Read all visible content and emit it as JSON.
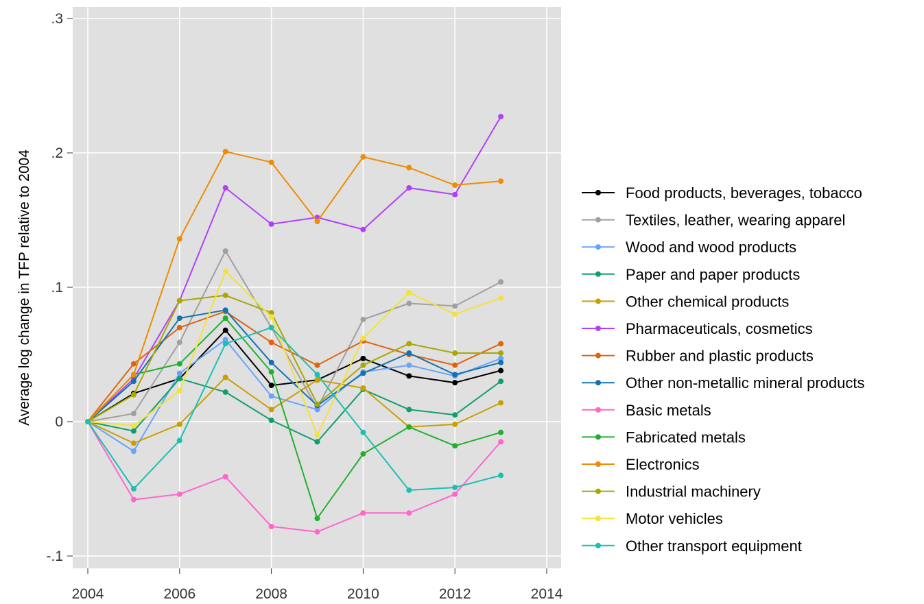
{
  "chart_data": {
    "type": "line",
    "title": "",
    "xlabel": "",
    "ylabel": "Average log change in TFP relative to 2004",
    "xlim": [
      2004,
      2014
    ],
    "ylim": [
      -0.1,
      0.3
    ],
    "x_ticks": [
      2004,
      2006,
      2008,
      2010,
      2012,
      2014
    ],
    "y_ticks": [
      -0.1,
      0,
      0.1,
      0.2,
      0.3
    ],
    "y_tick_labels": [
      "-.1",
      "0",
      ".1",
      ".2",
      ".3"
    ],
    "grid": true,
    "legend_position": "right",
    "panel_background": "#e0e0e0",
    "x": [
      2004,
      2005,
      2006,
      2007,
      2008,
      2009,
      2010,
      2011,
      2012,
      2013
    ],
    "series": [
      {
        "name": "Food products, beverages, tobacco",
        "color": "#000000",
        "values": [
          0,
          0.021,
          0.032,
          0.068,
          0.027,
          0.031,
          0.047,
          0.034,
          0.029,
          0.038
        ]
      },
      {
        "name": "Textiles, leather, wearing apparel",
        "color": "#a0a0a0",
        "values": [
          0,
          0.006,
          0.059,
          0.127,
          0.07,
          0.01,
          0.076,
          0.088,
          0.086,
          0.104
        ]
      },
      {
        "name": "Wood and wood products",
        "color": "#66a3ff",
        "values": [
          0,
          -0.022,
          0.036,
          0.061,
          0.019,
          0.009,
          0.037,
          0.042,
          0.034,
          0.047
        ]
      },
      {
        "name": "Paper and paper products",
        "color": "#119e6a",
        "values": [
          0,
          -0.007,
          0.032,
          0.022,
          0.001,
          -0.015,
          0.024,
          0.009,
          0.005,
          0.03
        ]
      },
      {
        "name": "Other chemical products",
        "color": "#c8a000",
        "values": [
          0,
          -0.016,
          -0.002,
          0.033,
          0.009,
          0.031,
          0.025,
          -0.004,
          -0.002,
          0.014
        ]
      },
      {
        "name": "Pharmaceuticals, cosmetics",
        "color": "#b040ff",
        "values": [
          0,
          0.032,
          0.09,
          0.174,
          0.147,
          0.152,
          0.143,
          0.174,
          0.169,
          0.227
        ]
      },
      {
        "name": "Rubber and plastic products",
        "color": "#e06410",
        "values": [
          0,
          0.043,
          0.07,
          0.082,
          0.059,
          0.042,
          0.06,
          0.05,
          0.042,
          0.058
        ]
      },
      {
        "name": "Other non-metallic mineral products",
        "color": "#1272b0",
        "values": [
          0,
          0.03,
          0.077,
          0.083,
          0.044,
          0.012,
          0.036,
          0.051,
          0.035,
          0.044
        ]
      },
      {
        "name": "Basic metals",
        "color": "#ff66cc",
        "values": [
          0,
          -0.058,
          -0.054,
          -0.041,
          -0.078,
          -0.082,
          -0.068,
          -0.068,
          -0.054,
          -0.015
        ]
      },
      {
        "name": "Fabricated metals",
        "color": "#20b030",
        "values": [
          0,
          0.035,
          0.043,
          0.077,
          0.037,
          -0.072,
          -0.024,
          -0.004,
          -0.018,
          -0.008
        ]
      },
      {
        "name": "Electronics",
        "color": "#ef8c00",
        "values": [
          0,
          0.035,
          0.136,
          0.201,
          0.193,
          0.149,
          0.197,
          0.189,
          0.176,
          0.179
        ]
      },
      {
        "name": "Industrial machinery",
        "color": "#a8a800",
        "values": [
          0,
          0.02,
          0.09,
          0.094,
          0.081,
          0.013,
          0.042,
          0.058,
          0.051,
          0.051
        ]
      },
      {
        "name": "Motor vehicles",
        "color": "#f4e23a",
        "values": [
          0,
          -0.003,
          0.023,
          0.112,
          0.078,
          -0.01,
          0.062,
          0.096,
          0.08,
          0.092
        ]
      },
      {
        "name": "Other transport equipment",
        "color": "#1cc0b0",
        "values": [
          0,
          -0.05,
          -0.014,
          0.058,
          0.07,
          0.035,
          -0.008,
          -0.051,
          -0.049,
          -0.04
        ]
      }
    ]
  }
}
